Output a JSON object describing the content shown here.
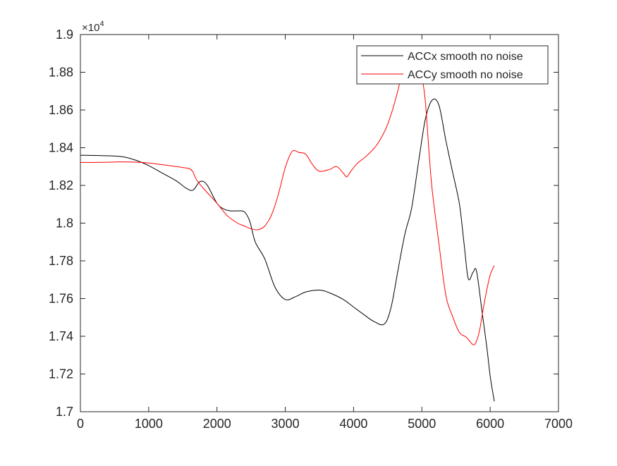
{
  "chart_data": {
    "type": "line",
    "title": "",
    "xlabel": "",
    "ylabel": "",
    "xlim": [
      0,
      7000
    ],
    "ylim": [
      1.7,
      1.9
    ],
    "y_exponent_label": "×10^4",
    "y_exponent_base": "×10",
    "y_exponent_power": "4",
    "grid": false,
    "legend_position": "top-right",
    "x_ticks": [
      0,
      1000,
      2000,
      3000,
      4000,
      5000,
      6000,
      7000
    ],
    "x_tick_labels": [
      "0",
      "1000",
      "2000",
      "3000",
      "4000",
      "5000",
      "6000",
      "7000"
    ],
    "y_ticks": [
      1.7,
      1.72,
      1.74,
      1.76,
      1.78,
      1.8,
      1.82,
      1.84,
      1.86,
      1.88,
      1.9
    ],
    "y_tick_labels": [
      "1.7",
      "1.72",
      "1.74",
      "1.76",
      "1.78",
      "1.8",
      "1.82",
      "1.84",
      "1.86",
      "1.88",
      "1.9"
    ],
    "series": [
      {
        "name": "ACCx smooth no noise",
        "color": "#000000",
        "x": [
          0,
          300,
          600,
          800,
          1000,
          1200,
          1400,
          1550,
          1650,
          1750,
          1850,
          2000,
          2100,
          2200,
          2300,
          2400,
          2480,
          2560,
          2700,
          2850,
          3000,
          3150,
          3300,
          3500,
          3650,
          3850,
          4000,
          4150,
          4300,
          4450,
          4550,
          4650,
          4750,
          4850,
          4950,
          5050,
          5150,
          5250,
          5350,
          5450,
          5550,
          5620,
          5680,
          5750,
          5800,
          5880,
          5950,
          6000,
          6060
        ],
        "y": [
          1.836,
          1.8358,
          1.8353,
          1.8335,
          1.8305,
          1.8265,
          1.8225,
          1.8185,
          1.8175,
          1.822,
          1.8205,
          1.8105,
          1.8075,
          1.8065,
          1.8065,
          1.806,
          1.801,
          1.79,
          1.781,
          1.766,
          1.7595,
          1.761,
          1.7635,
          1.7645,
          1.763,
          1.7595,
          1.7555,
          1.7515,
          1.7478,
          1.7465,
          1.7555,
          1.775,
          1.794,
          1.808,
          1.832,
          1.855,
          1.8652,
          1.8625,
          1.844,
          1.827,
          1.81,
          1.7885,
          1.7705,
          1.774,
          1.7745,
          1.7535,
          1.7345,
          1.719,
          1.7055
        ]
      },
      {
        "name": "ACCy smooth no noise",
        "color": "#ff0000",
        "x": [
          0,
          200,
          400,
          600,
          900,
          1200,
          1500,
          1600,
          1650,
          1700,
          1800,
          1900,
          2000,
          2150,
          2300,
          2400,
          2500,
          2600,
          2700,
          2800,
          2900,
          3000,
          3100,
          3200,
          3300,
          3400,
          3500,
          3650,
          3750,
          3850,
          3900,
          3950,
          4050,
          4200,
          4350,
          4500,
          4650,
          4750,
          4850,
          4950,
          5000,
          5050,
          5100,
          5150,
          5250,
          5350,
          5450,
          5550,
          5650,
          5750,
          5800,
          5850,
          5900,
          5950,
          6000,
          6060
        ],
        "y": [
          1.8322,
          1.8322,
          1.8323,
          1.8325,
          1.8322,
          1.831,
          1.8295,
          1.8288,
          1.827,
          1.823,
          1.8185,
          1.8145,
          1.8105,
          1.804,
          1.8,
          1.7985,
          1.797,
          1.7965,
          1.7985,
          1.8045,
          1.8155,
          1.8295,
          1.838,
          1.8375,
          1.8365,
          1.831,
          1.8275,
          1.8285,
          1.83,
          1.8265,
          1.8245,
          1.827,
          1.8315,
          1.836,
          1.842,
          1.8525,
          1.8705,
          1.888,
          1.894,
          1.888,
          1.878,
          1.865,
          1.84,
          1.818,
          1.789,
          1.762,
          1.7505,
          1.742,
          1.7395,
          1.7355,
          1.7375,
          1.744,
          1.755,
          1.7645,
          1.7725,
          1.7775
        ]
      }
    ]
  }
}
